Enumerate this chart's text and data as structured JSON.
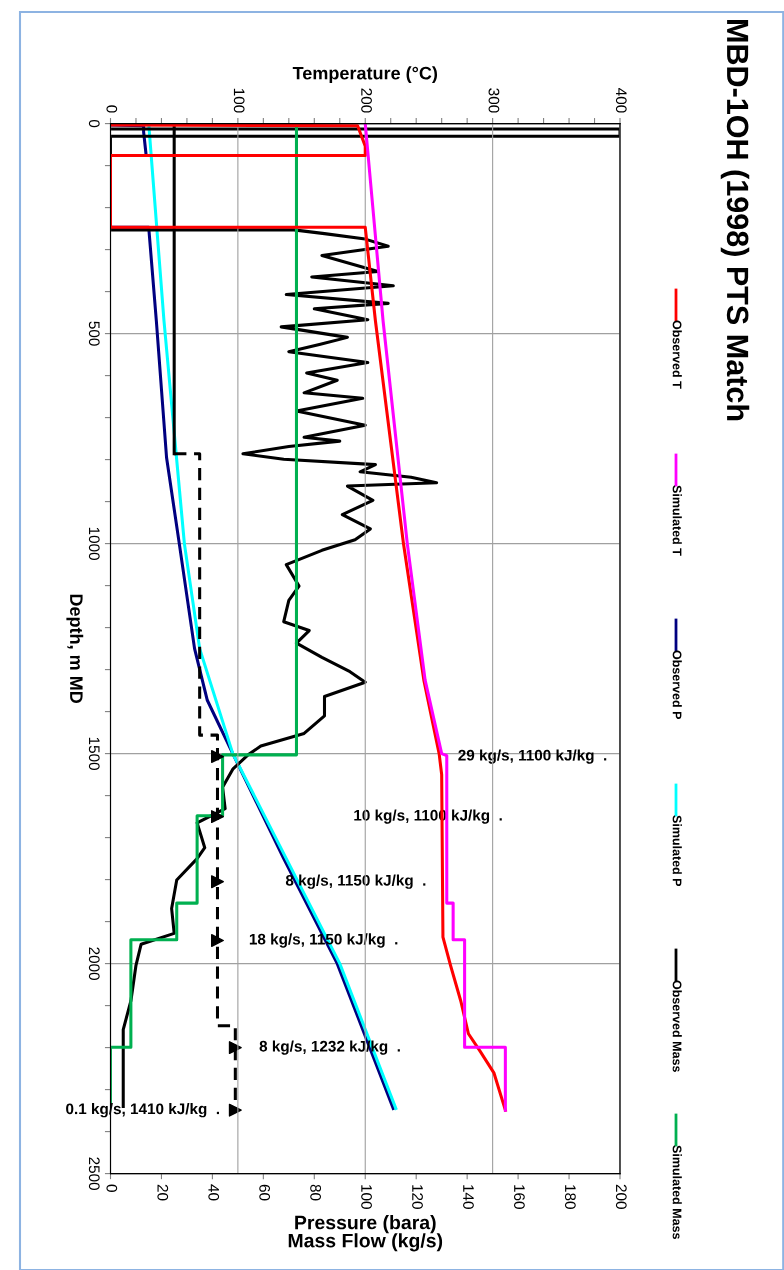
{
  "chart_data": {
    "type": "line",
    "title": "MBD-1OH (1998) PTS Match",
    "ylabel": "Depth, m MD",
    "xlabel": "Pressure (bara)\nMass Flow (kg/s)",
    "x2label": "Temperature (°C)",
    "ylim": [
      2500,
      0
    ],
    "yticks": [
      0,
      {
        "value": 100,
        "label": null
      },
      {
        "value": 200,
        "label": null
      },
      {
        "value": 300,
        "label": null
      },
      {
        "value": 400,
        "label": null
      },
      500,
      {
        "value": 600,
        "label": null
      },
      {
        "value": 700,
        "label": null
      },
      {
        "value": 800,
        "label": null
      },
      {
        "value": 900,
        "label": null
      },
      1000,
      {
        "value": 1100,
        "label": null
      },
      {
        "value": 1200,
        "label": null
      },
      {
        "value": 1300,
        "label": null
      },
      {
        "value": 1400,
        "label": null
      },
      1500,
      {
        "value": 1600,
        "label": null
      },
      {
        "value": 1700,
        "label": null
      },
      {
        "value": 1800,
        "label": null
      },
      {
        "value": 1900,
        "label": null
      },
      2000,
      {
        "value": 2100,
        "label": null
      },
      {
        "value": 2200,
        "label": null
      },
      {
        "value": 2300,
        "label": null
      },
      {
        "value": 2400,
        "label": null
      },
      2500
    ],
    "xlim": [
      0,
      200
    ],
    "xticks": [
      0,
      20,
      40,
      60,
      80,
      100,
      120,
      140,
      160,
      180,
      200
    ],
    "x2lim": [
      0,
      400
    ],
    "x2ticks": [
      0,
      {
        "value": 20,
        "label": null
      },
      {
        "value": 40,
        "label": null
      },
      {
        "value": 60,
        "label": null
      },
      {
        "value": 80,
        "label": null
      },
      100,
      {
        "value": 120,
        "label": null
      },
      {
        "value": 140,
        "label": null
      },
      {
        "value": 160,
        "label": null
      },
      {
        "value": 180,
        "label": null
      },
      200,
      {
        "value": 220,
        "label": null
      },
      {
        "value": 240,
        "label": null
      },
      {
        "value": 260,
        "label": null
      },
      {
        "value": 280,
        "label": null
      },
      300,
      {
        "value": 320,
        "label": null
      },
      {
        "value": 340,
        "label": null
      },
      {
        "value": 360,
        "label": null
      },
      {
        "value": 380,
        "label": null
      },
      400
    ],
    "grid": true,
    "legend": "right",
    "series": [
      {
        "name": "Observed T",
        "color": "#ff0000",
        "axis": "x2",
        "values": [
          3,
          5,
          54,
          76,
          76,
          247,
          247,
          470,
          1000,
          1325,
          1500,
          1550,
          1937,
          2005,
          2089,
          2167,
          2208,
          2260,
          2349
        ],
        "x": [
          0,
          194,
          200,
          200,
          0,
          0,
          200,
          208,
          230,
          246,
          258,
          260,
          261,
          267,
          275,
          281,
          290,
          301,
          310
        ]
      },
      {
        "name": "Simulated T",
        "color": "#ff00ff",
        "axis": "x2",
        "values": [
          0,
          470,
          1000,
          1325,
          1500,
          1505,
          1856,
          1856,
          1943,
          1943,
          2199,
          2199,
          2349
        ],
        "x": [
          200,
          214,
          233,
          247,
          260,
          264,
          264,
          269,
          269,
          278,
          278,
          310,
          310
        ]
      },
      {
        "name": "Observed P",
        "color": "#000080",
        "values": [
          3,
          5,
          20,
          76,
          76,
          247,
          247,
          470,
          795,
          1000,
          1250,
          1373,
          1500,
          1750,
          2000,
          2345
        ],
        "x": [
          0,
          13,
          13,
          14,
          0,
          0,
          15,
          18,
          22,
          27,
          33,
          38,
          48,
          68,
          89,
          111
        ]
      },
      {
        "name": "Simulated P",
        "color": "#00ffff",
        "values": [
          0,
          470,
          1000,
          1250,
          1500,
          1750,
          2000,
          2345
        ],
        "x": [
          15,
          21,
          29,
          35,
          48,
          69,
          90,
          112
        ]
      },
      {
        "name": "Observed Mass",
        "color": "#000000",
        "values": [
          13,
          13,
          30,
          30,
          253,
          253,
          262,
          275,
          292,
          314,
          352,
          365,
          386,
          407,
          428,
          441,
          467,
          484,
          509,
          526,
          543,
          569,
          594,
          611,
          641,
          654,
          684,
          718,
          747,
          756,
          769,
          786,
          799,
          812,
          829,
          842,
          855,
          863,
          897,
          931,
          965,
          991,
          1016,
          1050,
          1101,
          1135,
          1186,
          1207,
          1237,
          1271,
          1305,
          1330,
          1364,
          1410,
          1452,
          1482,
          1503,
          1537,
          1580,
          1631,
          1665,
          1724,
          1750,
          1801,
          1869,
          1928,
          1954,
          2004,
          2089,
          2157,
          2259,
          2340
        ],
        "x": [
          0,
          200,
          200,
          0,
          0,
          72,
          84,
          100,
          109,
          83,
          105,
          79,
          111,
          69,
          109,
          80,
          101,
          67,
          93,
          82,
          70,
          101,
          77,
          89,
          76,
          99,
          73,
          100,
          76,
          90,
          70,
          52,
          68,
          104,
          98,
          118,
          128,
          93,
          103,
          91,
          102,
          96,
          83,
          69,
          74,
          70,
          68,
          78,
          73,
          83,
          94,
          100,
          84,
          84,
          76,
          59,
          54,
          48,
          44,
          45,
          34,
          37,
          34,
          26,
          24,
          25,
          12,
          10,
          8,
          5,
          5,
          5
        ]
      },
      {
        "name": "Simulated Mass",
        "color": "#00b050",
        "values": [
          0,
          1503,
          1503,
          1648,
          1648,
          1856,
          1856,
          1943,
          1943,
          2199,
          2199,
          2340
        ],
        "x": [
          73,
          73,
          44,
          44,
          34,
          34,
          26,
          26,
          8,
          8,
          0,
          0
        ]
      },
      {
        "color": "#000000",
        "values": [
          0,
          786
        ],
        "x": [
          25,
          25
        ]
      },
      {
        "color": "#000000",
        "line_style": "dashed",
        "values": [
          786,
          786,
          1456,
          1456,
          2148,
          2148,
          2349
        ],
        "x": [
          25,
          35,
          35,
          42,
          42,
          49,
          49
        ]
      },
      {
        "type": "scatter",
        "marker": "triangle",
        "color": "#000000",
        "values": [
          1507,
          1650,
          1805,
          1945,
          2200,
          2349
        ],
        "x": [
          42,
          42,
          42,
          42,
          49,
          49
        ]
      }
    ],
    "annotations": [
      "29 kg/s, 1100 kJ/kg  .",
      "10 kg/s, 1100 kJ/kg  .",
      "8 kg/s, 1150 kJ/kg  .",
      "18 kg/s, 1150 kJ/kg  .",
      "8 kg/s, 1232 kJ/kg  .",
      "0.1 kg/s, 1410 kJ/kg  ."
    ]
  }
}
